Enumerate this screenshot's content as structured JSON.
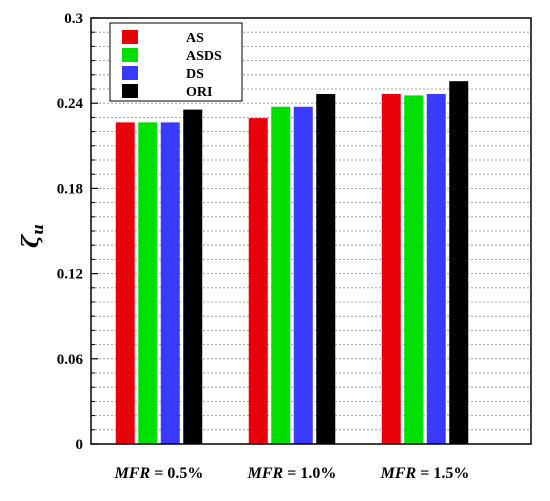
{
  "chart_data": {
    "type": "bar",
    "categories": [
      {
        "prefix": "MFR",
        "suffix": " = 0.5%"
      },
      {
        "prefix": "MFR",
        "suffix": " = 1.0%"
      },
      {
        "prefix": "MFR",
        "suffix": " = 1.5%"
      }
    ],
    "series": [
      {
        "name": "AS",
        "color": "#e8000b",
        "values": [
          0.2265,
          0.2295,
          0.2465
        ]
      },
      {
        "name": "ASDS",
        "color": "#00e000",
        "values": [
          0.2265,
          0.2375,
          0.2455
        ]
      },
      {
        "name": "DS",
        "color": "#3a3aff",
        "values": [
          0.2265,
          0.2375,
          0.2465
        ]
      },
      {
        "name": "ORI",
        "color": "#000000",
        "values": [
          0.2355,
          0.2465,
          0.2555
        ]
      }
    ],
    "ylabel": "ζu",
    "ylim": [
      0,
      0.3
    ],
    "yticks": [
      "0",
      "0.06",
      "0.12",
      "0.18",
      "0.24",
      "0.3"
    ],
    "grid": "horizontal dashed",
    "legend_position": "top-left"
  }
}
